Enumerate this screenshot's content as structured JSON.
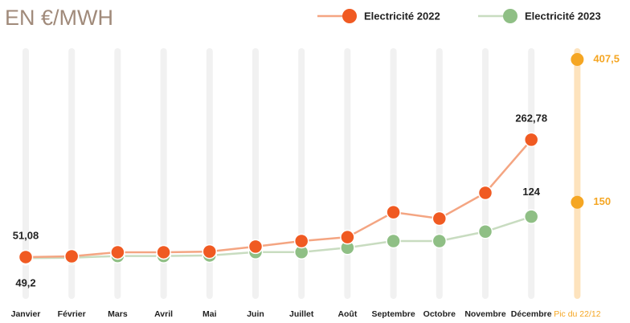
{
  "chart_data": {
    "type": "line",
    "title": "EN €/MWH",
    "categories": [
      "Janvier",
      "Février",
      "Mars",
      "Avril",
      "Mai",
      "Juin",
      "Juillet",
      "Août",
      "Septembre",
      "Octobre",
      "Novembre",
      "Décembre"
    ],
    "series": [
      {
        "name": "Electricité 2022",
        "color": "#f05a22",
        "line_color": "#f4a582",
        "values": [
          51.08,
          52.5,
          59.8,
          59.8,
          61,
          70,
          80,
          87,
          132,
          120.6,
          167,
          262.78
        ],
        "value_labels": [
          "51,08",
          null,
          null,
          null,
          null,
          null,
          null,
          null,
          null,
          null,
          null,
          "262,78"
        ]
      },
      {
        "name": "Electricité 2023",
        "color": "#8fbf85",
        "line_color": "#c8dcc0",
        "values": [
          49.2,
          50,
          53,
          53,
          54,
          60,
          60,
          68,
          80,
          80,
          97,
          124
        ],
        "value_labels": [
          "49,2",
          null,
          null,
          null,
          null,
          null,
          null,
          null,
          null,
          null,
          null,
          "124"
        ]
      }
    ],
    "peak": {
      "label": "Pic du 22/12",
      "values": [
        407.5,
        150
      ],
      "value_labels": [
        "407,5",
        "150"
      ],
      "color": "#f5a623"
    },
    "ylim": [
      0,
      420
    ]
  }
}
